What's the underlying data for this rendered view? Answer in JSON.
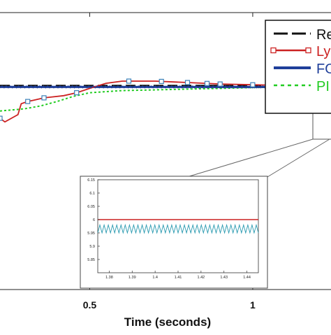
{
  "chart_data": [
    {
      "type": "line",
      "xlabel": "Time (seconds)",
      "x_ticks": [
        "0.5",
        "1"
      ],
      "x_tick_values": [
        0.5,
        1
      ],
      "xlim": [
        0.225,
        1.24
      ],
      "ylim": [
        5.72,
        6.1
      ],
      "grid": false,
      "legend_position": "top-right",
      "legend_entries_visible": [
        "Re",
        "Ly",
        "FO",
        "PI"
      ],
      "series": [
        {
          "name": "Re",
          "color": "#111111",
          "style": "dashed",
          "x": [
            0.225,
            1.24
          ],
          "y": [
            6.0,
            6.0
          ]
        },
        {
          "name": "Ly",
          "color": "#cc2222",
          "style": "solid-square-markers",
          "x": [
            0.225,
            0.24,
            0.26,
            0.28,
            0.29,
            0.31,
            0.33,
            0.36,
            0.38,
            0.42,
            0.46,
            0.5,
            0.55,
            0.6,
            0.65,
            0.7,
            0.8,
            0.9,
            1.0,
            1.1,
            1.24
          ],
          "y": [
            5.955,
            5.95,
            5.955,
            5.96,
            5.975,
            5.978,
            5.98,
            5.983,
            5.984,
            5.986,
            5.99,
            5.996,
            6.003,
            6.006,
            6.006,
            6.006,
            6.004,
            6.002,
            6.001,
            6.0,
            6.0
          ]
        },
        {
          "name": "FO",
          "color": "#1f3f9a",
          "style": "solid-thick",
          "x": [
            0.225,
            0.4,
            0.6,
            0.8,
            1.0,
            1.24
          ],
          "y": [
            5.998,
            5.998,
            5.998,
            5.998,
            5.998,
            5.998
          ]
        },
        {
          "name": "PI",
          "color": "#22cc22",
          "style": "dotted",
          "x": [
            0.225,
            0.3,
            0.35,
            0.4,
            0.45,
            0.5,
            0.6,
            0.7,
            0.8,
            0.9,
            1.0,
            1.1,
            1.24
          ],
          "y": [
            5.965,
            5.968,
            5.972,
            5.978,
            5.985,
            5.99,
            5.993,
            5.994,
            5.995,
            5.996,
            5.997,
            5.998,
            5.999
          ]
        }
      ]
    },
    {
      "type": "line",
      "title": "",
      "xlim": [
        1.375,
        1.445
      ],
      "ylim": [
        5.8,
        6.15
      ],
      "x_ticks": [
        "1.38",
        "1.39",
        "1.4",
        "1.41",
        "1.42",
        "1.43",
        "1.44"
      ],
      "x_tick_values": [
        1.38,
        1.39,
        1.4,
        1.41,
        1.42,
        1.43,
        1.44
      ],
      "y_ticks": [
        "6.15",
        "6.1",
        "6.05",
        "6",
        "5.95",
        "5.9",
        "5.85"
      ],
      "y_tick_values": [
        6.15,
        6.1,
        6.05,
        6.0,
        5.95,
        5.9,
        5.85
      ],
      "series": [
        {
          "color": "#cc2222",
          "style": "solid",
          "x": [
            1.375,
            1.445
          ],
          "y": [
            6.0,
            6.0
          ]
        },
        {
          "color": "#2a9ab0",
          "style": "oscillating",
          "x": [
            1.375,
            1.445
          ],
          "y_min": 5.95,
          "y_max": 5.98,
          "cycles": 38
        }
      ]
    }
  ]
}
